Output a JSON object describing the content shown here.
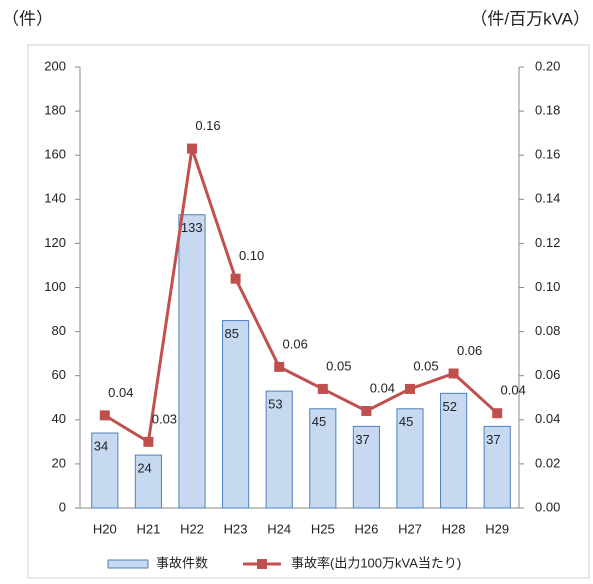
{
  "chart_data": {
    "type": "bar",
    "ylabel": "（件）",
    "y2label": "（件/百万kVA）",
    "categories": [
      "H20",
      "H21",
      "H22",
      "H23",
      "H24",
      "H25",
      "H26",
      "H27",
      "H28",
      "H29"
    ],
    "series": [
      {
        "name": "事故件数",
        "type": "bar",
        "color": "#c6d9f1",
        "edge": "#4f81bd",
        "values": [
          34,
          24,
          133,
          85,
          53,
          45,
          37,
          45,
          52,
          37
        ]
      },
      {
        "name": "事故率(出力100万kVA当たり)",
        "type": "line",
        "axis": "y2",
        "color": "#c0504d",
        "values": [
          0.042,
          0.03,
          0.163,
          0.104,
          0.064,
          0.054,
          0.044,
          0.054,
          0.061,
          0.043
        ],
        "value_labels": [
          "0.04",
          "0.03",
          "0.16",
          "0.10",
          "0.06",
          "0.05",
          "0.04",
          "0.05",
          "0.06",
          "0.04"
        ]
      }
    ],
    "ylim": [
      0,
      200
    ],
    "yticks": [
      0,
      20,
      40,
      60,
      80,
      100,
      120,
      140,
      160,
      180,
      200
    ],
    "y2lim": [
      0,
      0.2
    ],
    "y2ticks": [
      {
        "value": 0,
        "label": "0.00"
      },
      0.02,
      0.04,
      0.06,
      0.08,
      {
        "value": 0.1,
        "label": "0.10"
      },
      0.12,
      0.14,
      0.16,
      0.18,
      {
        "value": 0.2,
        "label": "0.20"
      }
    ],
    "grid": false
  }
}
